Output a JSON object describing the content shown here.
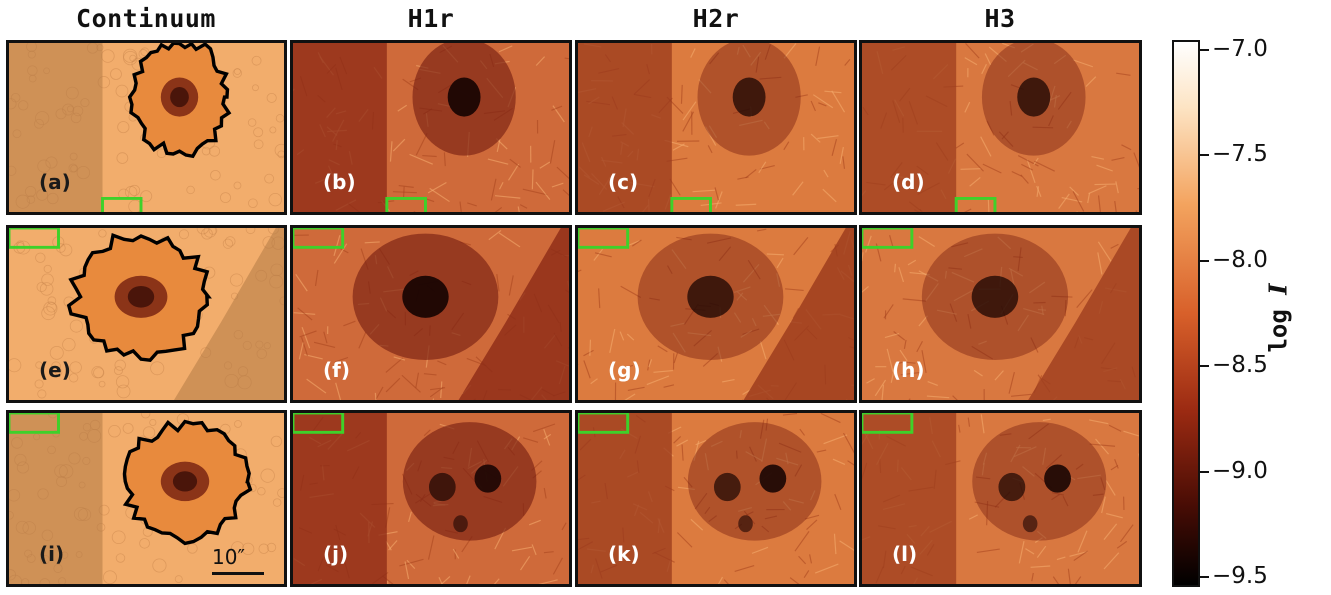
{
  "columns": [
    "Continuum",
    "H1r",
    "H2r",
    "H3"
  ],
  "panels": [
    {
      "label": "(a)",
      "row": 0,
      "col": 0
    },
    {
      "label": "(b)",
      "row": 0,
      "col": 1
    },
    {
      "label": "(c)",
      "row": 0,
      "col": 2
    },
    {
      "label": "(d)",
      "row": 0,
      "col": 3
    },
    {
      "label": "(e)",
      "row": 1,
      "col": 0
    },
    {
      "label": "(f)",
      "row": 1,
      "col": 1
    },
    {
      "label": "(g)",
      "row": 1,
      "col": 2
    },
    {
      "label": "(h)",
      "row": 1,
      "col": 3
    },
    {
      "label": "(i)",
      "row": 2,
      "col": 0
    },
    {
      "label": "(j)",
      "row": 2,
      "col": 1
    },
    {
      "label": "(k)",
      "row": 2,
      "col": 2
    },
    {
      "label": "(l)",
      "row": 2,
      "col": 3
    }
  ],
  "scale_bar": {
    "label": "10″"
  },
  "colorbar": {
    "title": "log ",
    "title_var": "I",
    "min": -9.5,
    "max": -7.0,
    "ticks": [
      "−7.0",
      "−7.5",
      "−8.0",
      "−8.5",
      "−9.0",
      "−9.5"
    ],
    "tick_values": [
      -7.0,
      -7.5,
      -8.0,
      -8.5,
      -9.0,
      -9.5
    ]
  },
  "colors": {
    "continuum": "#f2ad6c",
    "continuum_dim": "#b37a45",
    "h1r": "#cf6a3a",
    "h1r_dim": "#8c2a16",
    "h2r": "#dc7b3f",
    "h2r_dim": "#9a3a1c",
    "h3": "#d97840",
    "h3_dim": "#9e3d1e",
    "umbra": "#1a0503",
    "penumbra": "#7a2112",
    "contour": "#000000",
    "marker": "#3ed12a"
  }
}
